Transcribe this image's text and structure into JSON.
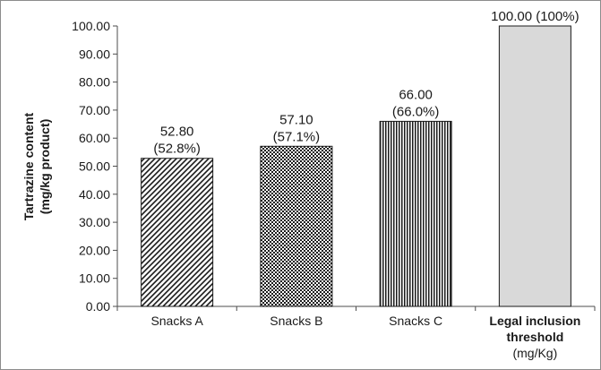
{
  "chart_data": {
    "type": "bar",
    "title": "",
    "ylabel": "Tartrazine content (mg/kg product)",
    "ylabel_lines": [
      "Tartrazine content",
      "(mg/kg product)"
    ],
    "xlabel": "",
    "ylim": [
      0,
      100
    ],
    "ytick_step": 10,
    "yticks": [
      "0.00",
      "10.00",
      "20.00",
      "30.00",
      "40.00",
      "50.00",
      "60.00",
      "70.00",
      "80.00",
      "90.00",
      "100.00"
    ],
    "grid": false,
    "legend": "none",
    "categories": [
      {
        "label_lines": [
          "Snacks A"
        ],
        "bold_lines": 0
      },
      {
        "label_lines": [
          "Snacks B"
        ],
        "bold_lines": 0
      },
      {
        "label_lines": [
          "Snacks C"
        ],
        "bold_lines": 0
      },
      {
        "label_lines": [
          "Legal  inclusion",
          "threshold",
          "(mg/Kg)"
        ],
        "bold_lines": 2
      }
    ],
    "values": [
      52.8,
      57.1,
      66.0,
      100.0
    ],
    "data_labels": [
      [
        "52.80",
        "(52.8%)"
      ],
      [
        "57.10",
        "(57.1%)"
      ],
      [
        "66.00",
        "(66.0%)"
      ],
      [
        "100.00 (100%)"
      ]
    ],
    "bar_fills": [
      "diagonal-hatch",
      "dot-grid",
      "vertical-lines",
      "solid-lightgray"
    ],
    "colors": {
      "bar_stroke": "#1a1a1a",
      "solid_fill": "#d9d9d9",
      "axis": "#4d4d4d"
    }
  }
}
